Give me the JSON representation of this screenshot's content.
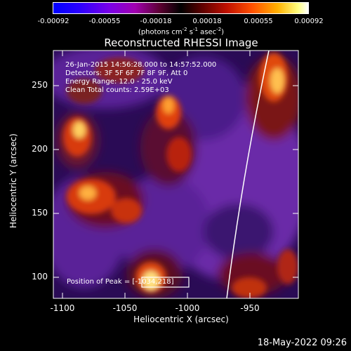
{
  "colorbar": {
    "ticks": [
      "-0.00092",
      "-0.00055",
      "-0.00018",
      "0.00018",
      "0.00055",
      "0.00092"
    ],
    "units_text": "(photons cm",
    "units_exp1": "-2",
    "units_mid": " s",
    "units_exp2": "-1",
    "units_mid2": " asec",
    "units_exp3": "-2",
    "units_end": ")"
  },
  "title": "Reconstructed RHESSI Image",
  "info": {
    "line1": "26-Jan-2015 14:56:28.000 to 14:57:52.000",
    "line2": "Detectors: 3F 5F 6F 7F 8F 9F, Att 0",
    "line3": "Energy Range: 12.0 - 25.0 keV",
    "line4": "Clean    Total counts: 2.59E+03"
  },
  "peak": "Position of Peak = [-1034,218]",
  "axes": {
    "xlabel": "Heliocentric X (arcsec)",
    "ylabel": "Heliocentric Y (arcsec)",
    "xticks": [
      "-1100",
      "-1050",
      "-1000",
      "-950"
    ],
    "yticks": [
      "250",
      "200",
      "150",
      "100"
    ],
    "xrange": [
      -1112,
      -918
    ],
    "yrange": [
      83,
      270
    ]
  },
  "colors": {
    "blob_hot": "#ffe080",
    "blob_warm": "#d83a10",
    "bg_purple": "#6a2aa8",
    "bg_deep": "#4b1a8a",
    "limb": "#ffffff"
  },
  "date": "18-May-2022 09:26"
}
